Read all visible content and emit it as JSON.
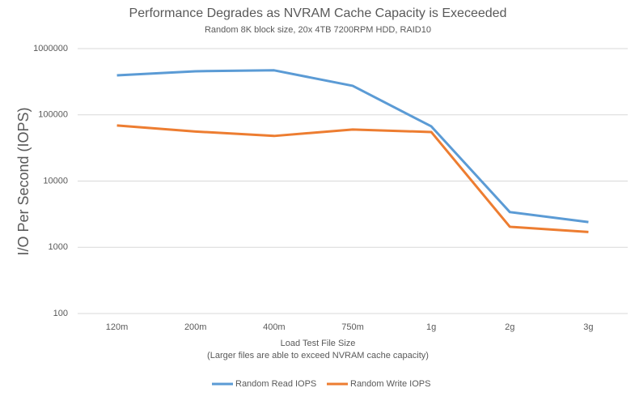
{
  "chart_data": {
    "type": "line",
    "title": "Performance Degrades as NVRAM Cache Capacity is Execeeded",
    "subtitle": "Random 8K block size, 20x 4TB 7200RPM HDD, RAID10",
    "xlabel": [
      "Load Test File Size",
      "(Larger files are able to exceed NVRAM cache capacity)"
    ],
    "ylabel": "I/O Per Second (IOPS)",
    "categories": [
      "120m",
      "200m",
      "400m",
      "750m",
      "1g",
      "2g",
      "3g"
    ],
    "series": [
      {
        "name": "Random Read IOPS",
        "color": "#5b9bd5",
        "values": [
          395000,
          455000,
          470000,
          274000,
          67000,
          3400,
          2400
        ]
      },
      {
        "name": "Random Write IOPS",
        "color": "#ed7d31",
        "values": [
          69000,
          56000,
          48000,
          60000,
          55000,
          2040,
          1700
        ]
      }
    ],
    "ylim": [
      100,
      1000000
    ],
    "yticks": [
      100,
      1000,
      10000,
      100000,
      1000000
    ],
    "log_scale": true,
    "grid": true,
    "legend": "bottom"
  }
}
